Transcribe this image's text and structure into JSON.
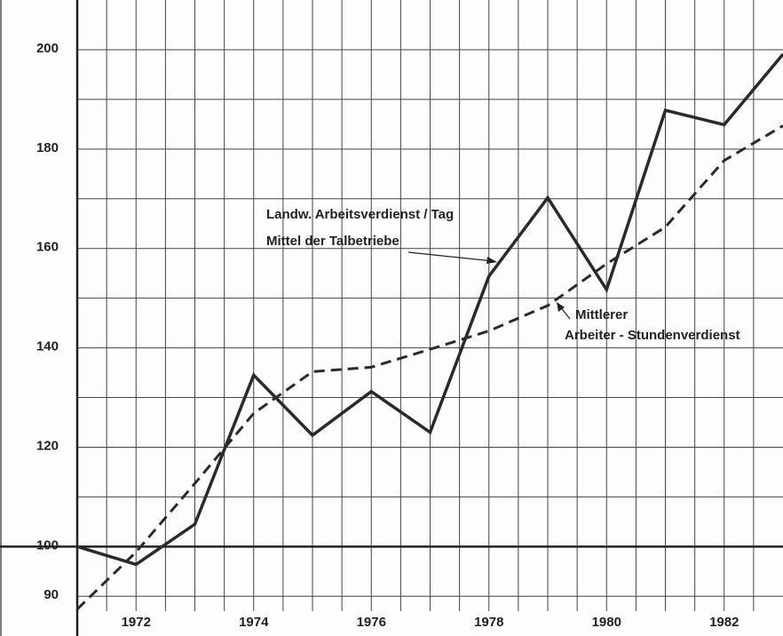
{
  "chart_data": {
    "type": "line",
    "x": [
      1971,
      1972,
      1973,
      1974,
      1975,
      1976,
      1977,
      1978,
      1979,
      1980,
      1981,
      1982,
      1983
    ],
    "series": [
      {
        "color": "#2a2a2a",
        "dash": "solid",
        "values": [
          100,
          96.4,
          104.5,
          134.5,
          122.4,
          131.2,
          123,
          154.4,
          170.2,
          151.7,
          187.8,
          184.9,
          199.1
        ]
      },
      {
        "color": "#2a2a2a",
        "dash": "dashed",
        "values": [
          87.4,
          98.9,
          112.7,
          126.8,
          135.2,
          136.1,
          139.7,
          143.4,
          148.5,
          156.9,
          164.3,
          177.7,
          184.7
        ]
      }
    ],
    "xlim": [
      1971,
      1983
    ],
    "xticks": [
      1972,
      1974,
      1976,
      1978,
      1980,
      1982
    ],
    "xgrid": [
      1971.5,
      1972,
      1972.5,
      1973,
      1973.5,
      1974,
      1974.5,
      1975,
      1975.5,
      1976,
      1976.5,
      1977,
      1977.5,
      1978,
      1978.5,
      1979,
      1979.5,
      1980,
      1980.5,
      1981,
      1981.5,
      1982,
      1982.5
    ],
    "ylim": [
      82,
      210
    ],
    "yticks": [
      90,
      100,
      120,
      140,
      160,
      180,
      200
    ],
    "ygrid": [
      90,
      100,
      110,
      120,
      130,
      140,
      150,
      160,
      170,
      180,
      190,
      200
    ],
    "baseline": 100,
    "grid": true,
    "annotations": [
      {
        "text": "Landw. Arbeitsverdienst / Tag"
      },
      {
        "text": "Mittel der Talbetriebe"
      },
      {
        "text": "Mittlerer"
      },
      {
        "text": "Arbeiter - Stundenverdienst"
      }
    ]
  }
}
